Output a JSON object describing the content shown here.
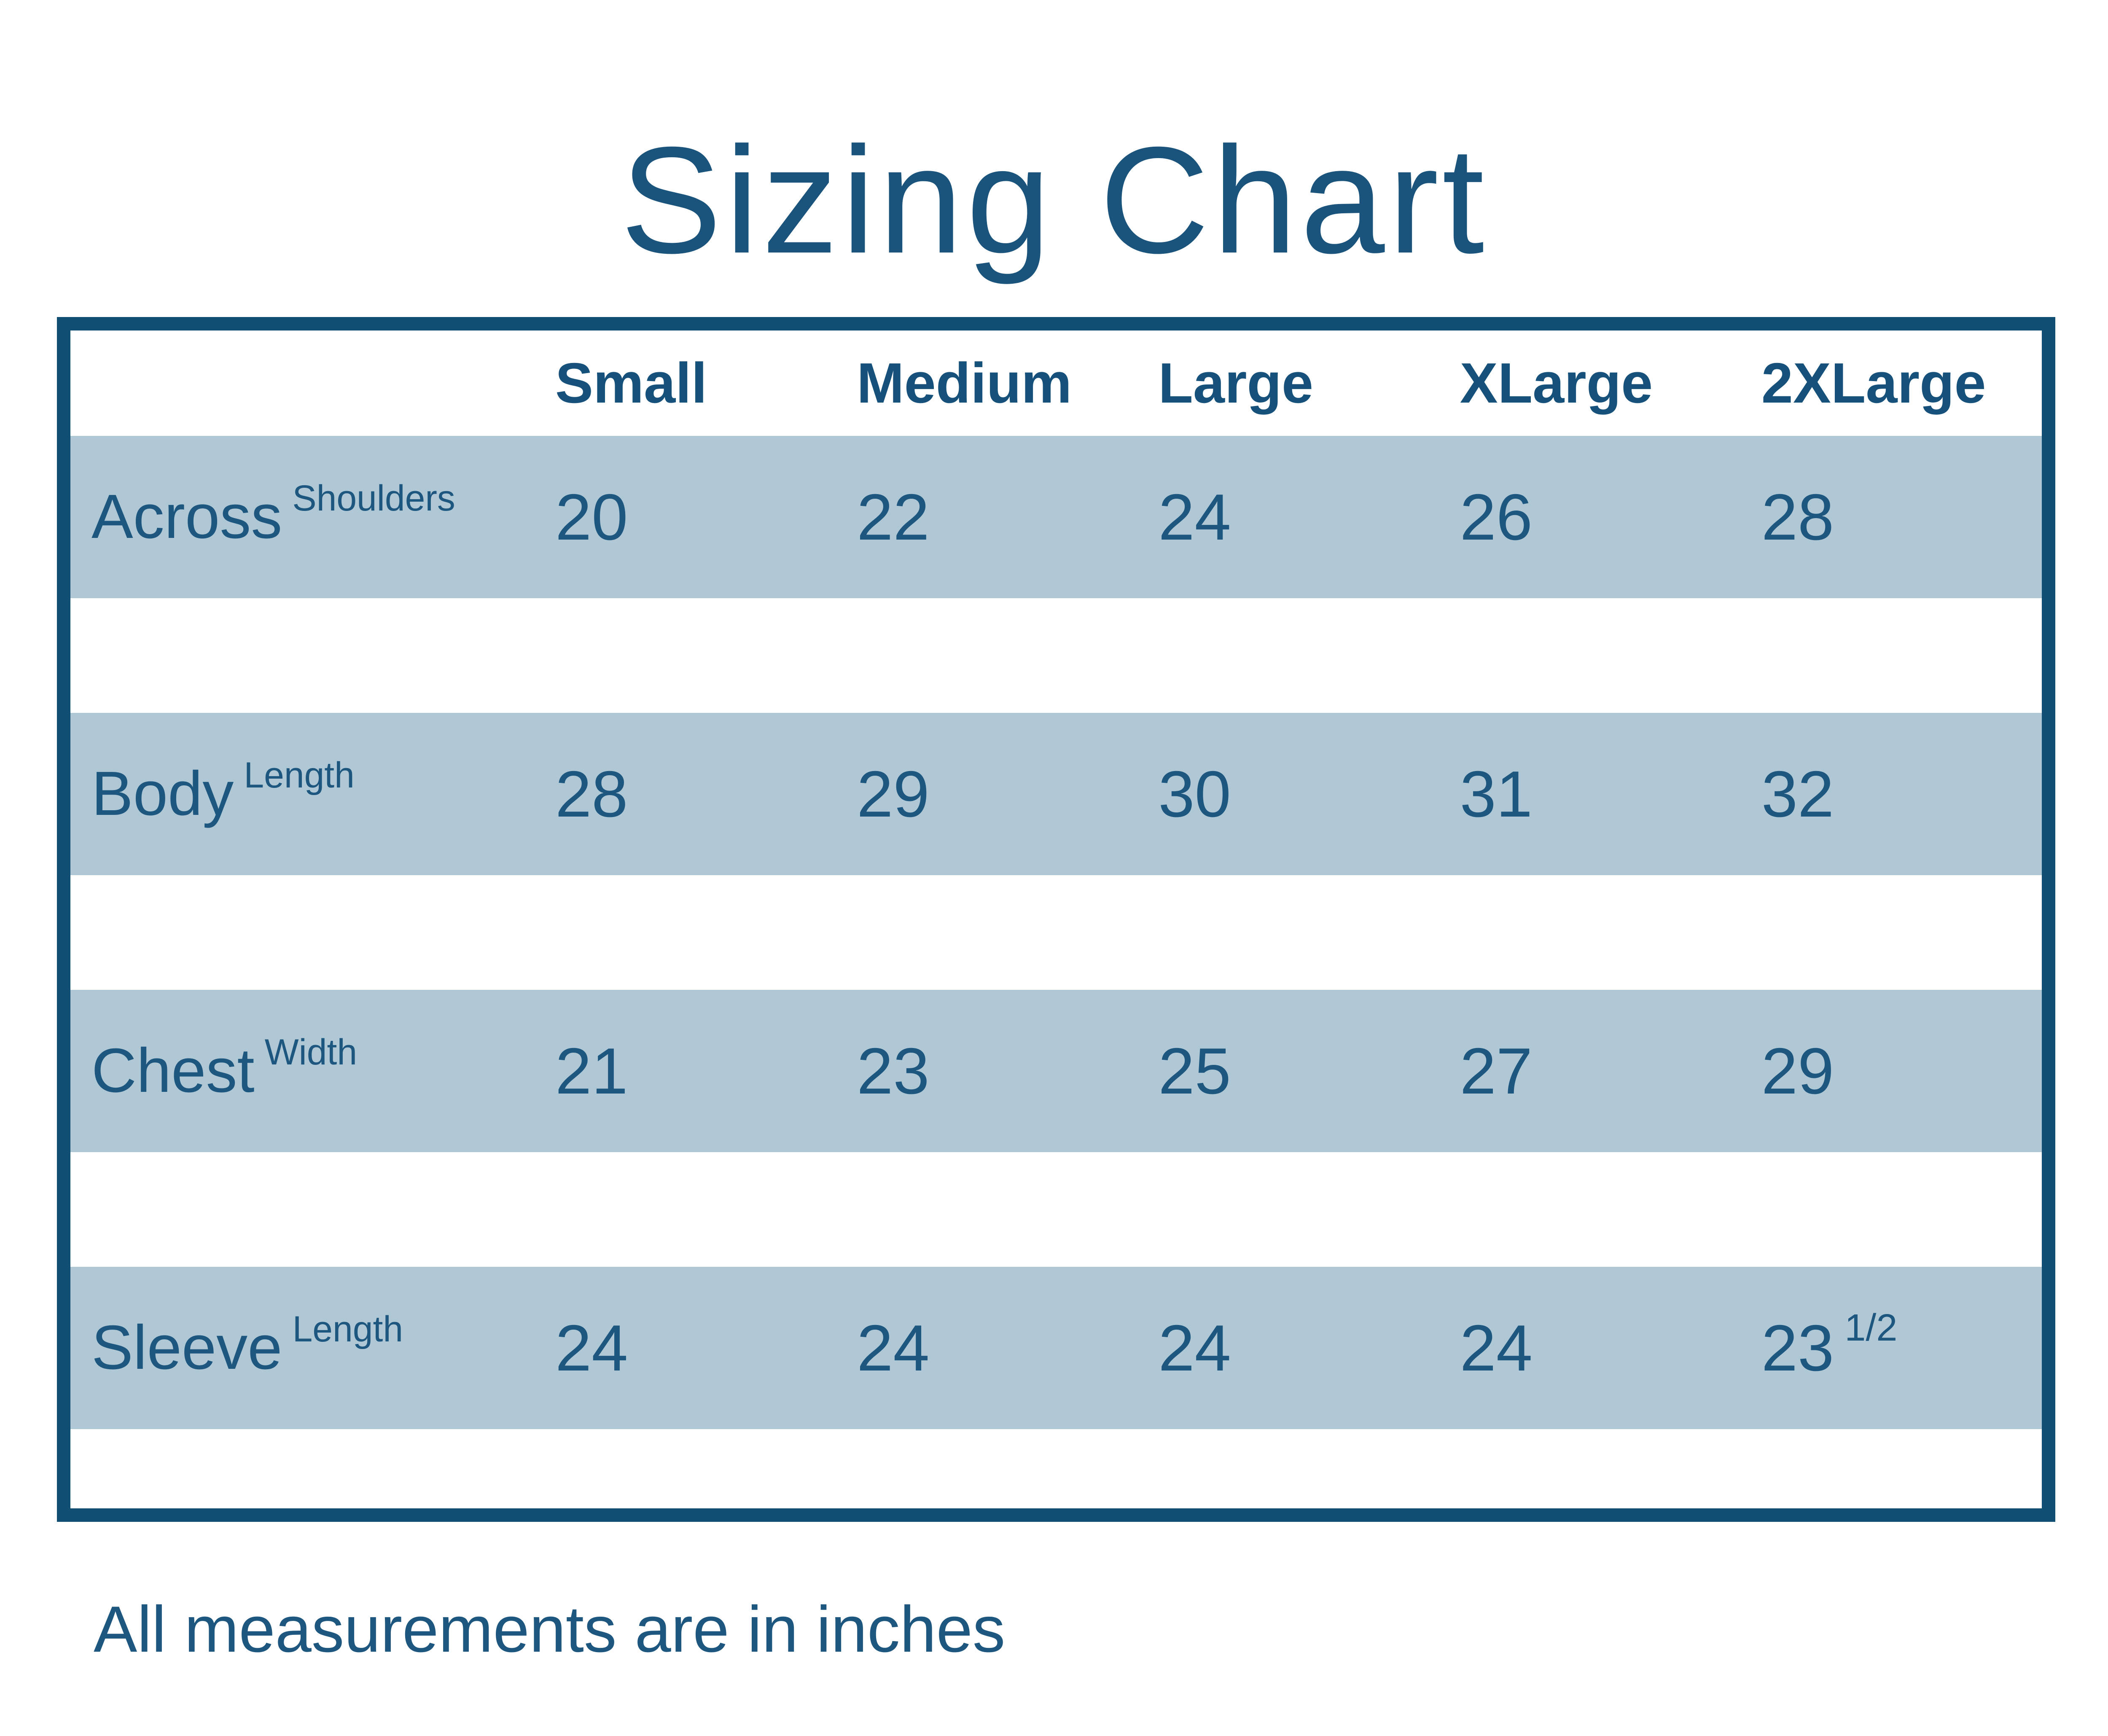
{
  "title": "Sizing Chart",
  "footnote": "All measurements are in inches",
  "colors": {
    "accent_dark_blue": "#114e74",
    "text_blue": "#1d567e",
    "header_text_blue": "#16517b",
    "row_band_blue": "#b0c8d5",
    "background": "#ffffff"
  },
  "chart_data": {
    "type": "table",
    "title": "Sizing Chart",
    "columns": [
      "",
      "Small",
      "Medium",
      "Large",
      "XLarge",
      "2XLarge"
    ],
    "rows": [
      {
        "label": "Across Shoulders",
        "values": [
          "20",
          "22",
          "24",
          "26",
          "28"
        ]
      },
      {
        "label": "Body Length",
        "values": [
          "28",
          "29",
          "30",
          "31",
          "32"
        ]
      },
      {
        "label": "Chest Width",
        "values": [
          "21",
          "23",
          "25",
          "27",
          "29"
        ]
      },
      {
        "label": "Sleeve Length",
        "values": [
          "24",
          "24",
          "24",
          "24",
          "23 1/2"
        ]
      }
    ],
    "note": "All measurements are in inches",
    "layout": {
      "grid": "off",
      "row_striping": "alternating light blue bands",
      "border": "thick dark blue frame"
    }
  }
}
